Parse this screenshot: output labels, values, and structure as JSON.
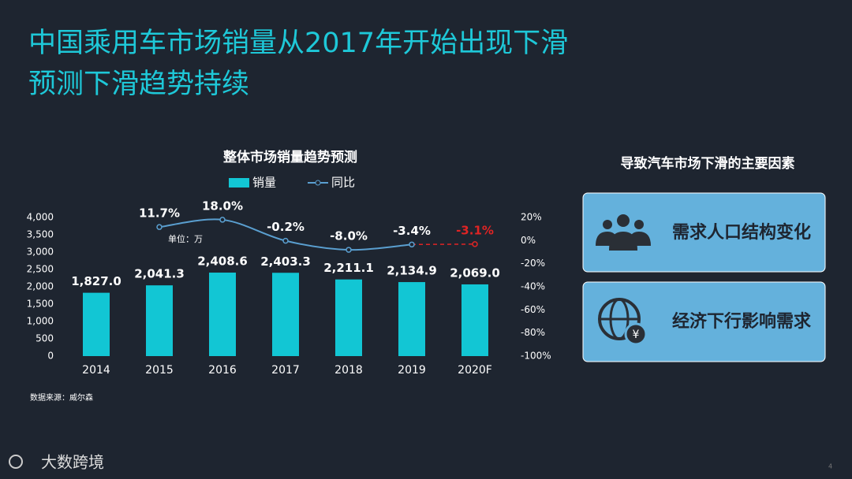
{
  "title_lines": [
    "中国乘用车市场销量从2017年开始出现下滑",
    "预测下滑趋势持续"
  ],
  "chart_data": {
    "type": "bar",
    "title": "整体市场销量趋势预测",
    "unit_note": "单位：万",
    "categories": [
      "2014",
      "2015",
      "2016",
      "2017",
      "2018",
      "2019",
      "2020F"
    ],
    "series": [
      {
        "name": "销量",
        "type": "bar",
        "color": "#12c6d4",
        "values": [
          1827.0,
          2041.3,
          2408.6,
          2403.3,
          2211.1,
          2134.9,
          2069.0
        ],
        "value_labels": [
          "1,827.0",
          "2,041.3",
          "2,408.6",
          "2,403.3",
          "2,211.1",
          "2,134.9",
          "2,069.0"
        ]
      },
      {
        "name": "同比",
        "type": "line",
        "axis": "y2",
        "color": "#5a9fd0",
        "forecast_color": "#e02424",
        "values": [
          null,
          11.7,
          18.0,
          -0.2,
          -8.0,
          -3.4,
          -3.1
        ],
        "value_labels": [
          null,
          "11.7%",
          "18.0%",
          "-0.2%",
          "-8.0%",
          "-3.4%",
          "-3.1%"
        ]
      }
    ],
    "ylim": [
      0,
      4000
    ],
    "yticks": [
      0,
      500,
      {
        "value": 1000,
        "label": "1,000"
      },
      {
        "value": 1500,
        "label": "1,500"
      },
      {
        "value": 2000,
        "label": "2,000"
      },
      {
        "value": 2500,
        "label": "2,500"
      },
      {
        "value": 3000,
        "label": "3,000"
      },
      {
        "value": 3500,
        "label": "3,500"
      },
      {
        "value": 4000,
        "label": "4,000"
      }
    ],
    "y2lim": [
      -100,
      20
    ],
    "y2ticks": [
      {
        "value": 20,
        "label": "20%"
      },
      {
        "value": 0,
        "label": "0%"
      },
      {
        "value": -20,
        "label": "-20%"
      },
      {
        "value": -40,
        "label": "-40%"
      },
      {
        "value": -60,
        "label": "-60%"
      },
      {
        "value": -80,
        "label": "-80%"
      },
      {
        "value": -100,
        "label": "-100%"
      }
    ]
  },
  "factors": {
    "title": "导致汽车市场下滑的主要因素",
    "items": [
      "需求人口结构变化",
      "经济下行影响需求"
    ]
  },
  "source": "数据来源：威尔森",
  "logo": "大数跨境",
  "page_number": 4
}
